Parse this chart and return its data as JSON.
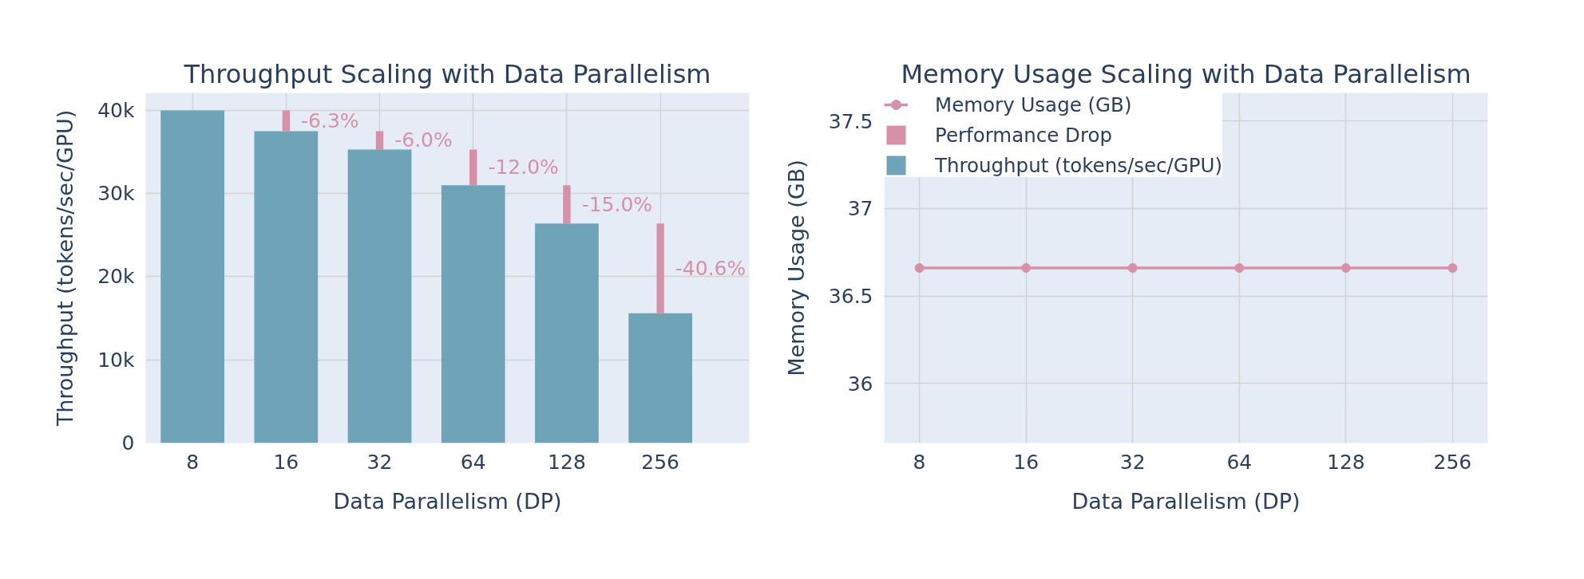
{
  "chart_data": [
    {
      "type": "bar",
      "title": "Throughput Scaling with Data Parallelism",
      "xlabel": "Data Parallelism (DP)",
      "ylabel": "Throughput (tokens/sec/GPU)",
      "categories": [
        "8",
        "16",
        "32",
        "64",
        "128",
        "256"
      ],
      "stacked": true,
      "series": [
        {
          "name": "Throughput (tokens/sec/GPU)",
          "color": "#6fa3b8",
          "values": [
            40000,
            37500,
            35300,
            31000,
            26400,
            15600
          ]
        },
        {
          "name": "Performance Drop",
          "color": "#d691a8",
          "values": [
            null,
            2500,
            2200,
            4300,
            4600,
            10800
          ]
        }
      ],
      "annotations": [
        {
          "text": "-6.3%",
          "x": "16",
          "y": 38750
        },
        {
          "text": "-6.0%",
          "x": "32",
          "y": 36400
        },
        {
          "text": "-12.0%",
          "x": "64",
          "y": 33150
        },
        {
          "text": "-15.0%",
          "x": "128",
          "y": 28700
        },
        {
          "text": "-40.6%",
          "x": "256",
          "y": 21000
        }
      ],
      "ylim": [
        0,
        42100
      ],
      "yticks": [
        0,
        {
          "value": 10000,
          "label": "10k"
        },
        {
          "value": 20000,
          "label": "20k"
        },
        {
          "value": 30000,
          "label": "30k"
        },
        {
          "value": 40000,
          "label": "40k"
        }
      ],
      "grid": true,
      "legend": "top right"
    },
    {
      "type": "line",
      "title": "Memory Usage Scaling with Data Parallelism",
      "xlabel": "Data Parallelism (DP)",
      "ylabel": "Memory Usage (GB)",
      "categories": [
        "8",
        "16",
        "32",
        "64",
        "128",
        "256"
      ],
      "series": [
        {
          "name": "Memory Usage (GB)",
          "color": "#d691a8",
          "values": [
            36.66,
            36.66,
            36.66,
            36.66,
            36.66,
            36.66
          ]
        }
      ],
      "ylim": [
        35.66,
        37.66
      ],
      "yticks": [
        36,
        36.5,
        37,
        37.5
      ],
      "grid": true,
      "marker": "circle",
      "line_style": "solid",
      "legend": "top left"
    }
  ]
}
